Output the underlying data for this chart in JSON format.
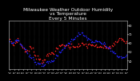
{
  "title": "Milwaukee Weather Outdoor Humidity\nvs Temperature\nEvery 5 Minutes",
  "title_fontsize": 4.2,
  "bg_color": "#000000",
  "plot_bg_color": "#000000",
  "fig_bg_color": "#000000",
  "grid_color": "#555555",
  "red_color": "#ff2222",
  "blue_color": "#2222ff",
  "ylim": [
    30,
    85
  ],
  "yticks_right": [
    40,
    50,
    60,
    70,
    80
  ],
  "marker_size": 1.2,
  "title_color": "#ffffff",
  "tick_color": "#ffffff",
  "n_points": 120,
  "red_pattern": [
    62,
    62,
    60,
    58,
    58,
    60,
    62,
    63,
    64,
    62,
    60,
    58,
    56,
    55,
    54,
    52,
    50,
    50,
    52,
    53,
    54,
    55,
    54,
    52,
    50,
    48,
    46,
    45,
    44,
    43,
    42,
    41,
    40,
    40,
    41,
    42,
    43,
    44,
    45,
    46,
    47,
    48,
    49,
    50,
    50,
    50,
    51,
    52,
    53,
    54,
    55,
    56,
    57,
    58,
    58,
    58,
    58,
    57,
    57,
    56,
    56,
    56,
    56,
    57,
    57,
    57,
    57,
    57,
    57,
    57,
    57,
    57,
    57,
    58,
    58,
    58,
    58,
    58,
    57,
    57,
    57,
    58,
    58,
    58,
    58,
    58,
    57,
    56,
    56,
    55,
    55,
    55,
    56,
    56,
    56,
    55,
    55,
    55,
    55,
    55,
    55,
    55,
    56,
    56,
    57,
    57,
    58,
    58,
    60,
    61,
    62,
    63,
    64,
    65,
    65,
    64,
    63,
    62,
    61,
    60
  ],
  "blue_pattern": [
    60,
    60,
    60,
    60,
    62,
    63,
    64,
    64,
    63,
    62,
    60,
    58,
    57,
    56,
    55,
    54,
    52,
    50,
    48,
    46,
    45,
    44,
    43,
    42,
    41,
    40,
    39,
    38,
    37,
    37,
    37,
    36,
    36,
    36,
    36,
    36,
    37,
    37,
    38,
    38,
    39,
    39,
    40,
    40,
    41,
    42,
    43,
    44,
    45,
    46,
    48,
    49,
    50,
    52,
    53,
    55,
    56,
    57,
    58,
    59,
    60,
    61,
    62,
    63,
    64,
    65,
    66,
    67,
    68,
    69,
    70,
    70,
    70,
    70,
    70,
    69,
    68,
    67,
    66,
    65,
    65,
    64,
    63,
    62,
    62,
    61,
    61,
    61,
    61,
    61,
    61,
    61,
    61,
    60,
    60,
    59,
    59,
    58,
    57,
    56,
    55,
    54,
    53,
    52,
    51,
    50,
    49,
    48,
    47,
    46,
    45,
    44,
    44,
    44,
    44,
    44,
    44,
    44,
    45,
    45
  ]
}
